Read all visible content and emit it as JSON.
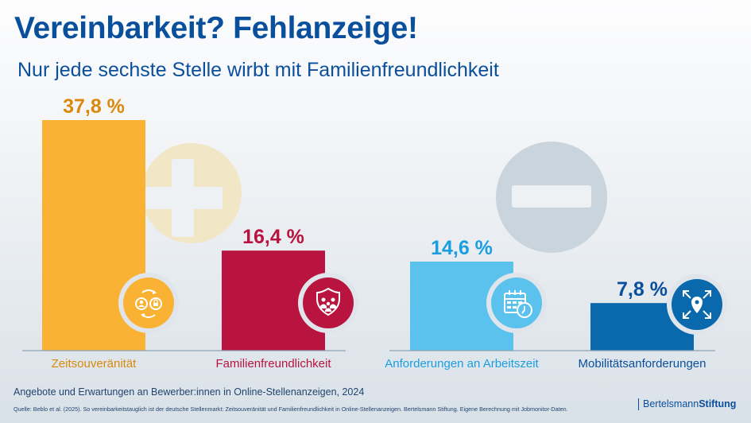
{
  "header": {
    "title": "Vereinbarkeit? Fehlanzeige!",
    "subtitle": "Nur jede sechste Stelle wirbt mit Familienfreundlichkeit"
  },
  "symbols": {
    "left": "plus-icon",
    "right": "minus-icon"
  },
  "chart_data": {
    "type": "bar",
    "title": "Vereinbarkeit? Fehlanzeige!",
    "subtitle": "Nur jede sechste Stelle wirbt mit Familienfreundlichkeit",
    "xlabel": "",
    "ylabel": "",
    "ylim": [
      0,
      40
    ],
    "unit": "%",
    "grid": false,
    "categories": [
      "Zeitsouveränität",
      "Familienfreundlichkeit",
      "Anforderungen an Arbeitszeit",
      "Mobilitätsanforderungen"
    ],
    "values": [
      37.8,
      16.4,
      14.6,
      7.8
    ],
    "labels": [
      "37,8 %",
      "16,4 %",
      "14,6 %",
      "7,8 %"
    ],
    "groups": [
      {
        "name": "Angebote",
        "symbol": "plus",
        "categories": [
          "Zeitsouveränität",
          "Familienfreundlichkeit"
        ]
      },
      {
        "name": "Erwartungen",
        "symbol": "minus",
        "categories": [
          "Anforderungen an Arbeitszeit",
          "Mobilitätsanforderungen"
        ]
      }
    ],
    "colors": [
      "#f9b233",
      "#b8143f",
      "#5bc2ee",
      "#0a68ad"
    ],
    "label_colors": [
      "#d98a0e",
      "#b8143f",
      "#1a9ee0",
      "#0a4f9c"
    ],
    "icons": [
      "swap-person-lock-icon",
      "shield-family-icon",
      "calendar-clock-icon",
      "location-expand-icon"
    ]
  },
  "footer": {
    "caption": "Angebote und Erwartungen an Bewerber:innen in Online-Stellenanzeigen, 2024",
    "source": "Quelle: Beblo et al. (2025). So vereinbarkeitstauglich ist der deutsche Stellenmarkt: Zeitsouveränität und Familienfreundlichkeit in Online-Stellenanzeigen. Bertelsmann Stiftung. Eigene Berechnung mit Jobmonitor-Daten.",
    "brand_light": "Bertelsmann",
    "brand_bold": "Stiftung"
  }
}
